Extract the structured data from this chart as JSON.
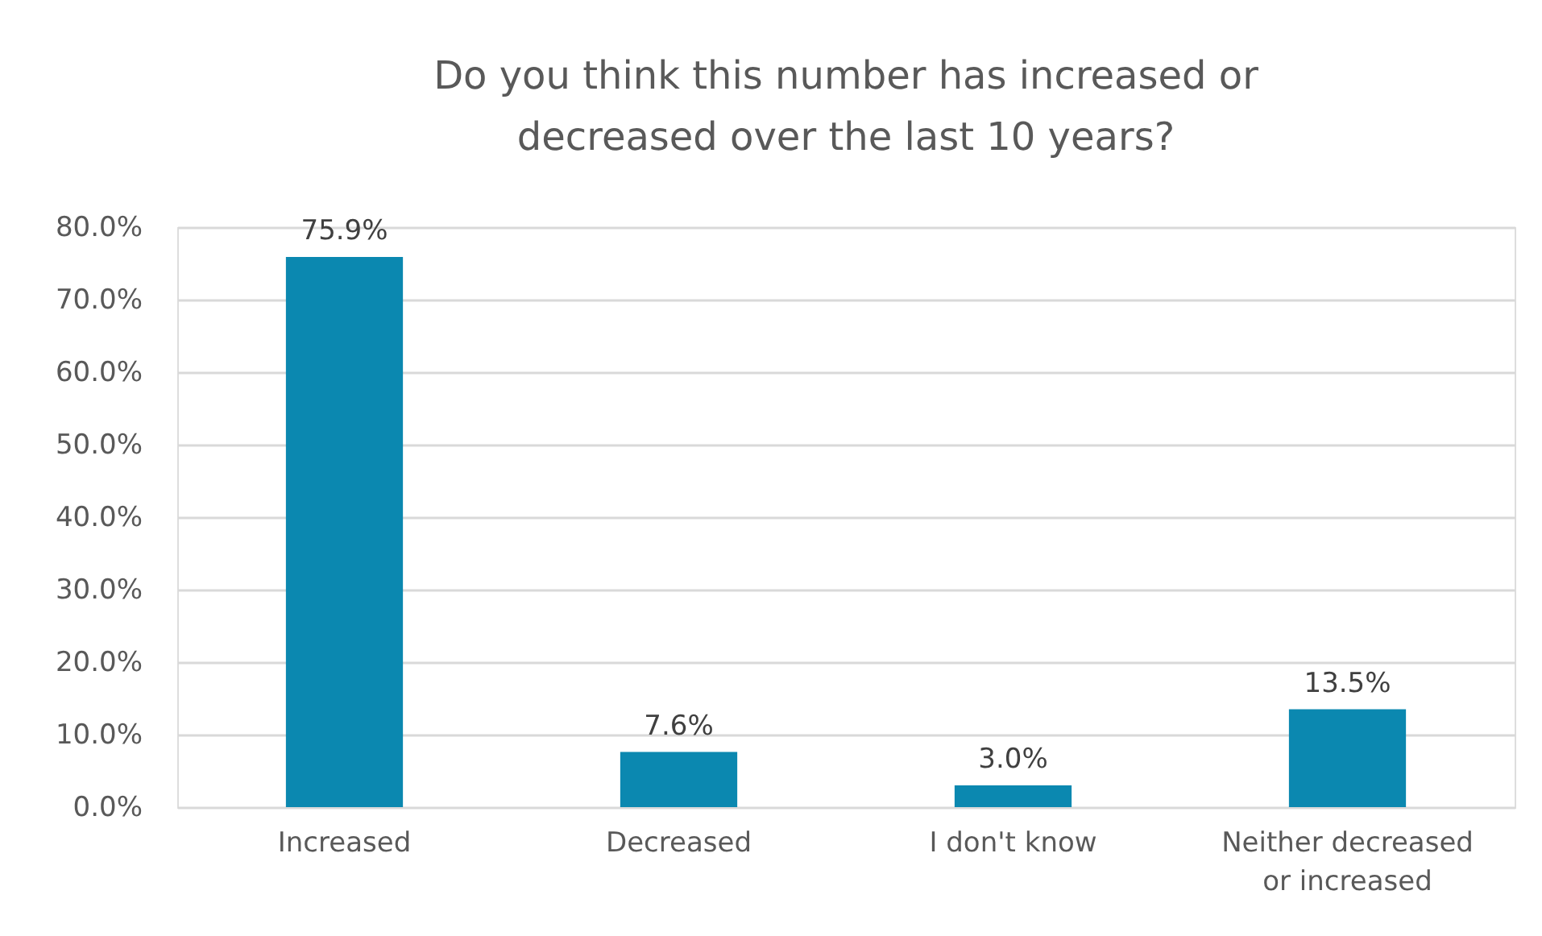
{
  "chart_data": {
    "type": "bar",
    "title": "Do you think this number has increased or decreased over the last 10 years?",
    "categories": [
      "Increased",
      "Decreased",
      "I don't know",
      "Neither decreased or increased"
    ],
    "values": [
      75.9,
      7.6,
      3.0,
      13.5
    ],
    "color": "#0b88b0",
    "value_labels": [
      "75.9%",
      "7.6%",
      "3.0%",
      "13.5%"
    ],
    "ylim": [
      0,
      80
    ],
    "yticks": [
      {
        "value": 0,
        "label": "0.0%"
      },
      {
        "value": 10,
        "label": "10.0%"
      },
      {
        "value": 20,
        "label": "20.0%"
      },
      {
        "value": 30,
        "label": "30.0%"
      },
      {
        "value": 40,
        "label": "40.0%"
      },
      {
        "value": 50,
        "label": "50.0%"
      },
      {
        "value": 60,
        "label": "60.0%"
      },
      {
        "value": 70,
        "label": "70.0%"
      },
      {
        "value": 80,
        "label": "80.0%"
      }
    ],
    "grid": "y"
  }
}
